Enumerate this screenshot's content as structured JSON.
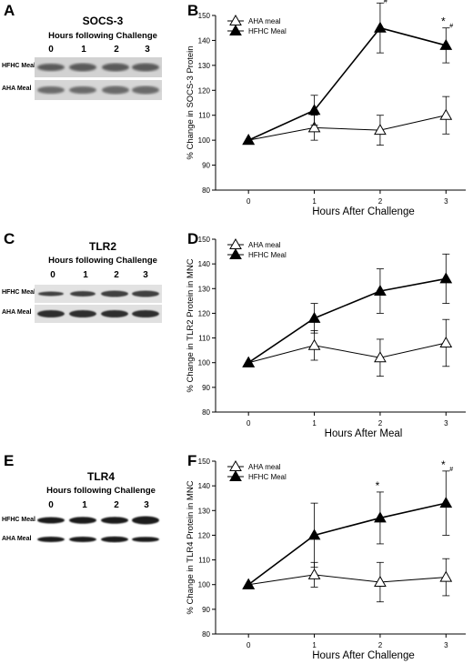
{
  "panels": {
    "A": {
      "letter": "A",
      "title": "SOCS-3",
      "subtitle": "Hours following Challenge",
      "lanes": [
        "0",
        "1",
        "2",
        "3"
      ],
      "rows": [
        "HFHC Meal",
        "AHA Meal"
      ]
    },
    "C": {
      "letter": "C",
      "title": "TLR2",
      "subtitle": "Hours following Challenge",
      "lanes": [
        "0",
        "1",
        "2",
        "3"
      ],
      "rows": [
        "HFHC Meal",
        "AHA Meal"
      ]
    },
    "E": {
      "letter": "E",
      "title": "TLR4",
      "subtitle": "Hours following Challenge",
      "lanes": [
        "0",
        "1",
        "2",
        "3"
      ],
      "rows": [
        "HFHC Meal",
        "AHA Meal"
      ]
    },
    "B": {
      "letter": "B"
    },
    "D": {
      "letter": "D"
    },
    "F": {
      "letter": "F"
    }
  },
  "chart_data": [
    {
      "panel": "B",
      "type": "line",
      "xlabel": "Hours After Challenge",
      "ylabel": "% Change in SOCS-3 Protein",
      "x": [
        0,
        1,
        2,
        3
      ],
      "xlim": [
        -0.5,
        3.3
      ],
      "ylim": [
        80,
        150
      ],
      "yticks": [
        80,
        90,
        100,
        110,
        120,
        130,
        140,
        150
      ],
      "legend_position": "top-left",
      "series": [
        {
          "name": "AHA meal",
          "marker": "open-triangle",
          "values": [
            100,
            105,
            104,
            110
          ],
          "errors": [
            0,
            5,
            6,
            7.5
          ]
        },
        {
          "name": "HFHC Meal",
          "marker": "filled-triangle",
          "values": [
            100,
            112,
            145,
            138
          ],
          "errors": [
            0,
            6,
            10,
            7
          ]
        }
      ],
      "annotations": [
        {
          "x": 2,
          "text": "*",
          "sub": "#"
        },
        {
          "x": 3,
          "text": "*",
          "sub": "#"
        }
      ]
    },
    {
      "panel": "D",
      "type": "line",
      "xlabel": "Hours After Meal",
      "ylabel": "% Change in TLR2 Protein in MNC",
      "x": [
        0,
        1,
        2,
        3
      ],
      "xlim": [
        -0.5,
        3.3
      ],
      "ylim": [
        80,
        150
      ],
      "yticks": [
        80,
        90,
        100,
        110,
        120,
        130,
        140,
        150
      ],
      "legend_position": "top-left",
      "series": [
        {
          "name": "AHA meal",
          "marker": "open-triangle",
          "values": [
            100,
            107,
            102,
            108
          ],
          "errors": [
            0,
            6,
            7.5,
            9.5
          ]
        },
        {
          "name": "HFHC Meal",
          "marker": "filled-triangle",
          "values": [
            100,
            118,
            129,
            134
          ],
          "errors": [
            0,
            6,
            9,
            10
          ]
        }
      ],
      "annotations": []
    },
    {
      "panel": "F",
      "type": "line",
      "xlabel": "Hours After Challenge",
      "ylabel": "% Change in TLR4 Protein in MNC",
      "x": [
        0,
        1,
        2,
        3
      ],
      "xlim": [
        -0.5,
        3.3
      ],
      "ylim": [
        80,
        150
      ],
      "yticks": [
        80,
        90,
        100,
        110,
        120,
        130,
        140,
        150
      ],
      "legend_position": "top-left",
      "series": [
        {
          "name": "AHA meal",
          "marker": "open-triangle",
          "values": [
            100,
            104,
            101,
            103
          ],
          "errors": [
            0,
            5,
            8,
            7.5
          ]
        },
        {
          "name": "HFHC Meal",
          "marker": "filled-triangle",
          "values": [
            100,
            120,
            127,
            133
          ],
          "errors": [
            0,
            13,
            10.5,
            13
          ]
        }
      ],
      "annotations": [
        {
          "x": 2,
          "text": "*",
          "sub": ""
        },
        {
          "x": 3,
          "text": "*",
          "sub": "#"
        }
      ]
    }
  ]
}
